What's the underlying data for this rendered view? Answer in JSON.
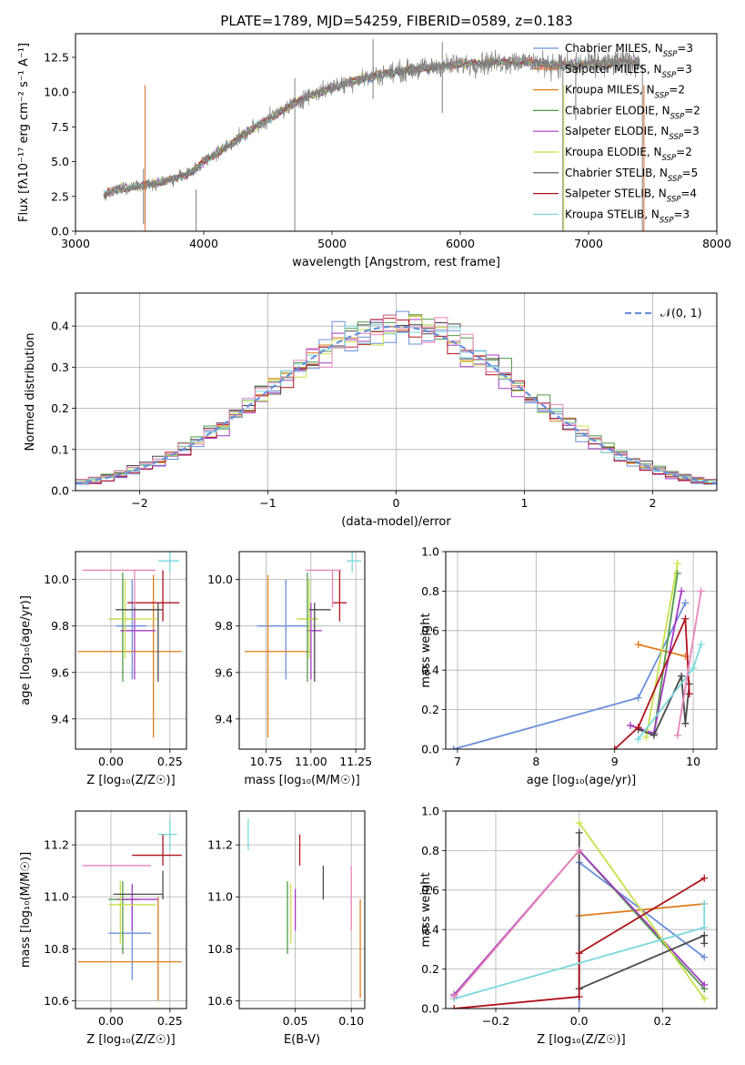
{
  "title": "PLATE=1789, MJD=54259, FIBERID=0589, z=0.183",
  "colors": {
    "Chabrier MILES": "#6a8fdb",
    "Salpeter MILES": "#e3672a",
    "Kroupa MILES": "#e07d1e",
    "Chabrier ELODIE": "#4f9a47",
    "Salpeter ELODIE": "#a43bc4",
    "Kroupa ELODIE": "#c8e04a",
    "Chabrier STELIB": "#4a4a4a",
    "Salpeter STELIB": "#b0121b",
    "Kroupa STELIB": "#7ad8dd",
    "Pink": "#e884b8",
    "DataGray": "#808080",
    "Grid": "#b0b0b0",
    "Normal": "#6a8fdb"
  },
  "chart_data": [
    {
      "type": "line",
      "xlabel": "wavelength [Angstrom, rest frame]",
      "ylabel": "Flux [fλ10⁻¹⁷ erg cm⁻² s⁻¹ A⁻¹]",
      "xlim": [
        3000,
        8000
      ],
      "ylim": [
        0,
        14.2
      ],
      "xticks": [
        "3000",
        "4000",
        "5000",
        "6000",
        "7000",
        "8000"
      ],
      "yticks": [
        "0.0",
        "2.5",
        "5.0",
        "7.5",
        "10.0",
        "12.5"
      ],
      "legend": [
        {
          "name": "Chabrier MILES, N",
          "sub": "SSP",
          "suffix": "=3"
        },
        {
          "name": "Salpeter MILES, N",
          "sub": "SSP",
          "suffix": "=3"
        },
        {
          "name": "Kroupa MILES, N",
          "sub": "SSP",
          "suffix": "=2"
        },
        {
          "name": "Chabrier ELODIE, N",
          "sub": "SSP",
          "suffix": "=2"
        },
        {
          "name": "Salpeter ELODIE, N",
          "sub": "SSP",
          "suffix": "=3"
        },
        {
          "name": "Kroupa ELODIE, N",
          "sub": "SSP",
          "suffix": "=2"
        },
        {
          "name": "Chabrier STELIB, N",
          "sub": "SSP",
          "suffix": "=5"
        },
        {
          "name": "Salpeter STELIB, N",
          "sub": "SSP",
          "suffix": "=4"
        },
        {
          "name": "Kroupa STELIB, N",
          "sub": "SSP",
          "suffix": "=3"
        }
      ],
      "legend_placement": "top-right",
      "continuum": {
        "x": [
          3220,
          3350,
          3500,
          3700,
          3900,
          4000,
          4200,
          4400,
          4600,
          4800,
          5000,
          5200,
          5400,
          5600,
          5800,
          6000,
          6200,
          6400,
          6600,
          6800,
          7000,
          7200,
          7400
        ],
        "y": [
          2.6,
          3.1,
          3.2,
          3.6,
          4.2,
          5.0,
          6.2,
          7.5,
          8.6,
          9.7,
          10.3,
          10.9,
          11.3,
          11.6,
          11.8,
          12.0,
          12.1,
          12.2,
          12.1,
          11.9,
          12.0,
          12.1,
          12.2
        ]
      },
      "spikes": [
        {
          "x": 4710,
          "y0": 0,
          "y1": 11.0
        },
        {
          "x": 6800,
          "y0": 0,
          "y1": 11.5
        },
        {
          "x": 7420,
          "y0": 0,
          "y1": 12.0
        },
        {
          "x": 3940,
          "y0": 0,
          "y1": 3.0
        },
        {
          "x": 3530,
          "y0": 0.5,
          "y1": 4.5
        },
        {
          "x": 5320,
          "y0": 9.5,
          "y1": 13.8
        },
        {
          "x": 5860,
          "y0": 8.5,
          "y1": 13.6
        },
        {
          "x": 6900,
          "y0": 8.0,
          "y1": 12.3
        }
      ]
    },
    {
      "type": "step",
      "xlabel": "(data-model)/error",
      "ylabel": "Normed distribution",
      "xlim": [
        -2.5,
        2.5
      ],
      "ylim": [
        0,
        0.48
      ],
      "xticks": [
        "−2",
        "−1",
        "0",
        "1",
        "2"
      ],
      "yticks": [
        "0.0",
        "0.1",
        "0.2",
        "0.3",
        "0.4"
      ],
      "legend_label": "𝒩(0, 1)",
      "legend_placement": "top-right",
      "normal": {
        "mu": 0,
        "sigma": 1
      },
      "bin_width": 0.1
    },
    {
      "type": "errorbar",
      "xlabel": "Z [log₁₀(Z/Z☉)]",
      "ylabel": "age  [log₁₀(age/yr)]",
      "xlim": [
        -0.15,
        0.32
      ],
      "ylim": [
        9.27,
        10.12
      ],
      "xticks": [
        "0.00",
        "0.25"
      ],
      "yticks": [
        "9.4",
        "9.6",
        "9.8",
        "10.0"
      ],
      "points": [
        {
          "c": "Chabrier MILES",
          "x": 0.09,
          "y": 9.8,
          "xe": [
            0.02,
            0.15
          ],
          "ye": [
            9.57,
            10.0
          ]
        },
        {
          "c": "Kroupa MILES",
          "x": 0.18,
          "y": 9.69,
          "xe": [
            -0.14,
            0.3
          ],
          "ye": [
            9.32,
            10.02
          ]
        },
        {
          "c": "Chabrier ELODIE",
          "x": 0.05,
          "y": 9.83,
          "xe": [
            -0.01,
            0.11
          ],
          "ye": [
            9.56,
            10.03
          ]
        },
        {
          "c": "Salpeter ELODIE",
          "x": 0.1,
          "y": 9.78,
          "xe": [
            0.04,
            0.19
          ],
          "ye": [
            9.57,
            9.9
          ]
        },
        {
          "c": "Kroupa ELODIE",
          "x": 0.06,
          "y": 9.83,
          "xe": [
            -0.01,
            0.2
          ],
          "ye": [
            9.66,
            10.0
          ]
        },
        {
          "c": "Chabrier STELIB",
          "x": 0.2,
          "y": 9.87,
          "xe": [
            0.02,
            0.22
          ],
          "ye": [
            9.56,
            9.9
          ]
        },
        {
          "c": "Salpeter STELIB",
          "x": 0.22,
          "y": 9.9,
          "xe": [
            0.07,
            0.29
          ],
          "ye": [
            9.82,
            10.04
          ]
        },
        {
          "c": "Kroupa STELIB",
          "x": 0.25,
          "y": 10.08,
          "xe": [
            0.2,
            0.29
          ],
          "ye": [
            10.03,
            10.12
          ]
        },
        {
          "c": "Pink",
          "x": 0.1,
          "y": 10.04,
          "xe": [
            -0.12,
            0.19
          ],
          "ye": [
            9.88,
            10.04
          ]
        }
      ]
    },
    {
      "type": "errorbar",
      "xlabel": "mass [log₁₀(M/M☉)]",
      "ylabel": "",
      "xlim": [
        10.6,
        11.3
      ],
      "ylim": [
        9.27,
        10.12
      ],
      "xticks": [
        "10.75",
        "11.00",
        "11.25"
      ],
      "yticks": [
        "9.4",
        "9.6",
        "9.8",
        "10.0"
      ],
      "points": [
        {
          "c": "Chabrier MILES",
          "x": 10.86,
          "y": 9.8,
          "xe": [
            10.7,
            10.99
          ],
          "ye": [
            9.57,
            10.0
          ]
        },
        {
          "c": "Kroupa MILES",
          "x": 10.76,
          "y": 9.69,
          "xe": [
            10.63,
            11.0
          ],
          "ye": [
            9.32,
            10.02
          ]
        },
        {
          "c": "Chabrier ELODIE",
          "x": 10.98,
          "y": 9.83,
          "xe": [
            10.93,
            11.04
          ],
          "ye": [
            9.56,
            10.03
          ]
        },
        {
          "c": "Salpeter ELODIE",
          "x": 11.0,
          "y": 9.78,
          "xe": [
            10.98,
            11.06
          ],
          "ye": [
            9.57,
            9.9
          ]
        },
        {
          "c": "Kroupa ELODIE",
          "x": 10.99,
          "y": 9.83,
          "xe": [
            10.92,
            11.04
          ],
          "ye": [
            9.66,
            10.0
          ]
        },
        {
          "c": "Chabrier STELIB",
          "x": 11.02,
          "y": 9.87,
          "xe": [
            10.99,
            11.11
          ],
          "ye": [
            9.56,
            9.9
          ]
        },
        {
          "c": "Salpeter STELIB",
          "x": 11.16,
          "y": 9.9,
          "xe": [
            11.12,
            11.2
          ],
          "ye": [
            9.82,
            10.04
          ]
        },
        {
          "c": "Kroupa STELIB",
          "x": 11.23,
          "y": 10.08,
          "xe": [
            11.2,
            11.28
          ],
          "ye": [
            10.03,
            10.12
          ]
        },
        {
          "c": "Pink",
          "x": 11.12,
          "y": 10.04,
          "xe": [
            10.97,
            11.17
          ],
          "ye": [
            9.88,
            10.04
          ]
        }
      ]
    },
    {
      "type": "line",
      "xlabel": "age  [log₁₀(age/yr)]",
      "ylabel": "mass weight",
      "xlim": [
        6.85,
        10.3
      ],
      "ylim": [
        0,
        1.0
      ],
      "xticks": [
        "7",
        "8",
        "9",
        "10"
      ],
      "yticks": [
        "0.0",
        "0.2",
        "0.4",
        "0.6",
        "0.8",
        "1.0"
      ],
      "series": [
        {
          "c": "Chabrier MILES",
          "x": [
            6.95,
            9.3,
            9.9
          ],
          "y": [
            0.0,
            0.26,
            0.74
          ]
        },
        {
          "c": "Kroupa MILES",
          "x": [
            9.3,
            9.9
          ],
          "y": [
            0.53,
            0.47
          ]
        },
        {
          "c": "Chabrier ELODIE",
          "x": [
            9.5,
            9.8
          ],
          "y": [
            0.08,
            0.89
          ]
        },
        {
          "c": "Salpeter ELODIE",
          "x": [
            9.2,
            9.5,
            9.85
          ],
          "y": [
            0.12,
            0.08,
            0.8
          ]
        },
        {
          "c": "Kroupa ELODIE",
          "x": [
            9.4,
            9.8
          ],
          "y": [
            0.06,
            0.94
          ]
        },
        {
          "c": "Chabrier STELIB",
          "x": [
            9.3,
            9.5,
            9.85,
            9.9,
            9.95
          ],
          "y": [
            0.1,
            0.07,
            0.37,
            0.13,
            0.33
          ]
        },
        {
          "c": "Salpeter STELIB",
          "x": [
            9.0,
            9.3,
            9.9,
            9.95
          ],
          "y": [
            0.0,
            0.11,
            0.66,
            0.28
          ]
        },
        {
          "c": "Kroupa STELIB",
          "x": [
            9.3,
            10.0,
            10.1
          ],
          "y": [
            0.05,
            0.41,
            0.53
          ]
        },
        {
          "c": "Pink",
          "x": [
            9.8,
            10.1
          ],
          "y": [
            0.07,
            0.8
          ]
        }
      ]
    },
    {
      "type": "errorbar",
      "xlabel": "Z [log₁₀(Z/Z☉)]",
      "ylabel": "mass [log₁₀(M/M☉)]",
      "xlim": [
        -0.15,
        0.32
      ],
      "ylim": [
        10.57,
        11.33
      ],
      "xticks": [
        "0.00",
        "0.25"
      ],
      "yticks": [
        "10.6",
        "10.8",
        "11.0",
        "11.2"
      ],
      "points": [
        {
          "c": "Chabrier MILES",
          "x": 0.09,
          "y": 10.86,
          "xe": [
            -0.01,
            0.17
          ],
          "ye": [
            10.68,
            10.99
          ]
        },
        {
          "c": "Kroupa MILES",
          "x": 0.2,
          "y": 10.75,
          "xe": [
            -0.14,
            0.3
          ],
          "ye": [
            10.6,
            11.0
          ]
        },
        {
          "c": "Chabrier ELODIE",
          "x": 0.05,
          "y": 10.99,
          "xe": [
            -0.01,
            0.12
          ],
          "ye": [
            10.78,
            11.06
          ]
        },
        {
          "c": "Salpeter ELODIE",
          "x": 0.09,
          "y": 10.99,
          "xe": [
            0.03,
            0.2
          ],
          "ye": [
            10.87,
            11.05
          ]
        },
        {
          "c": "Kroupa ELODIE",
          "x": 0.04,
          "y": 10.97,
          "xe": [
            -0.01,
            0.19
          ],
          "ye": [
            10.82,
            11.06
          ]
        },
        {
          "c": "Chabrier STELIB",
          "x": 0.22,
          "y": 11.01,
          "xe": [
            0.01,
            0.22
          ],
          "ye": [
            10.99,
            11.1
          ]
        },
        {
          "c": "Salpeter STELIB",
          "x": 0.22,
          "y": 11.16,
          "xe": [
            0.09,
            0.3
          ],
          "ye": [
            11.12,
            11.24
          ]
        },
        {
          "c": "Kroupa STELIB",
          "x": 0.25,
          "y": 11.24,
          "xe": [
            0.2,
            0.28
          ],
          "ye": [
            11.18,
            11.3
          ]
        },
        {
          "c": "Pink",
          "x": 0.1,
          "y": 11.12,
          "xe": [
            -0.12,
            0.17
          ],
          "ye": [
            11.12,
            11.12
          ]
        }
      ]
    },
    {
      "type": "errorbar",
      "xlabel": "E(B-V)",
      "ylabel": "",
      "xlim": [
        0.0,
        0.112
      ],
      "ylim": [
        10.57,
        11.33
      ],
      "xticks": [
        "0.05",
        "0.10"
      ],
      "yticks": [
        "10.6",
        "10.8",
        "11.0",
        "11.2"
      ],
      "points": [
        {
          "c": "Kroupa STELIB",
          "x": 0.008,
          "y": 11.24,
          "xe": [
            0.008,
            0.008
          ],
          "ye": [
            11.18,
            11.3
          ]
        },
        {
          "c": "Chabrier ELODIE",
          "x": 0.043,
          "y": 10.99,
          "xe": [
            0.043,
            0.043
          ],
          "ye": [
            10.78,
            11.06
          ]
        },
        {
          "c": "Kroupa ELODIE",
          "x": 0.046,
          "y": 10.97,
          "xe": [
            0.046,
            0.046
          ],
          "ye": [
            10.82,
            11.05
          ]
        },
        {
          "c": "Salpeter ELODIE",
          "x": 0.05,
          "y": 10.92,
          "xe": [
            0.05,
            0.05
          ],
          "ye": [
            10.87,
            11.03
          ]
        },
        {
          "c": "Salpeter STELIB",
          "x": 0.054,
          "y": 11.18,
          "xe": [
            0.054,
            0.054
          ],
          "ye": [
            11.12,
            11.24
          ]
        },
        {
          "c": "Chabrier STELIB",
          "x": 0.075,
          "y": 11.05,
          "xe": [
            0.075,
            0.075
          ],
          "ye": [
            10.99,
            11.12
          ]
        },
        {
          "c": "Pink",
          "x": 0.1,
          "y": 11.0,
          "xe": [
            0.1,
            0.1
          ],
          "ye": [
            10.87,
            11.12
          ]
        },
        {
          "c": "Kroupa MILES",
          "x": 0.108,
          "y": 10.8,
          "xe": [
            0.108,
            0.108
          ],
          "ye": [
            10.61,
            10.99
          ]
        }
      ]
    },
    {
      "type": "line",
      "xlabel": "Z [log₁₀(Z/Z☉)]",
      "ylabel": "mass weight",
      "xlim": [
        -0.32,
        0.33
      ],
      "ylim": [
        0,
        1.0
      ],
      "xticks": [
        "−0.2",
        "0.0",
        "0.2"
      ],
      "yticks": [
        "0.0",
        "0.2",
        "0.4",
        "0.6",
        "0.8",
        "1.0"
      ],
      "series": [
        {
          "c": "Chabrier MILES",
          "x": [
            0.0,
            0.0,
            0.3
          ],
          "y": [
            0.0,
            0.74,
            0.26
          ]
        },
        {
          "c": "Kroupa MILES",
          "x": [
            0.0,
            0.3
          ],
          "y": [
            0.47,
            0.53
          ]
        },
        {
          "c": "Chabrier ELODIE",
          "x": [
            0.0,
            0.3
          ],
          "y": [
            0.8,
            0.1
          ]
        },
        {
          "c": "Salpeter ELODIE",
          "x": [
            -0.3,
            0.0,
            0.3
          ],
          "y": [
            0.07,
            0.8,
            0.12
          ]
        },
        {
          "c": "Kroupa ELODIE",
          "x": [
            0.0,
            0.3
          ],
          "y": [
            0.94,
            0.05
          ]
        },
        {
          "c": "Chabrier STELIB",
          "x": [
            0.0,
            0.0,
            0.3,
            0.3
          ],
          "y": [
            0.89,
            0.1,
            0.37,
            0.33
          ]
        },
        {
          "c": "Salpeter STELIB",
          "x": [
            -0.3,
            0.0,
            0.0,
            0.3
          ],
          "y": [
            0.0,
            0.06,
            0.28,
            0.66
          ]
        },
        {
          "c": "Kroupa STELIB",
          "x": [
            -0.3,
            0.3,
            0.3
          ],
          "y": [
            0.05,
            0.41,
            0.53
          ]
        },
        {
          "c": "Pink",
          "x": [
            -0.3,
            0.0
          ],
          "y": [
            0.06,
            0.8
          ]
        }
      ]
    }
  ]
}
